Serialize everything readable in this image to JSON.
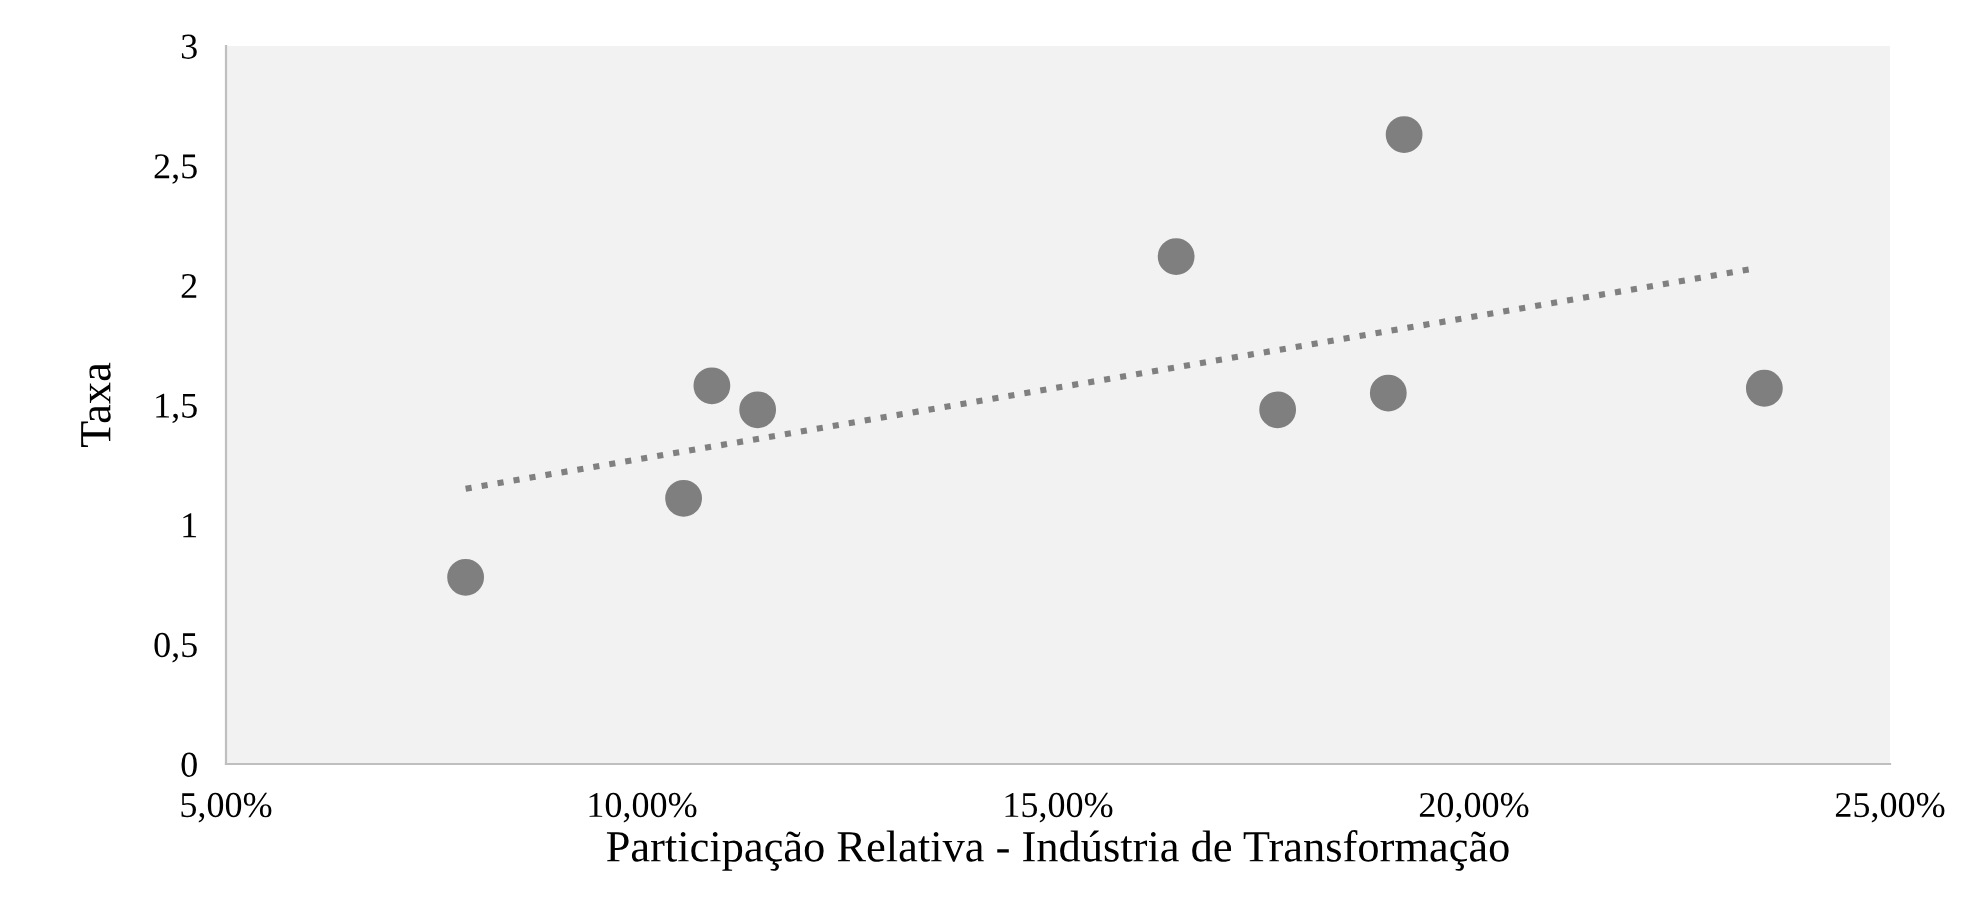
{
  "chart_data": {
    "type": "scatter",
    "xlabel": "Participação Relativa - Indústria de Transformação",
    "ylabel": "Taxa",
    "series": [
      {
        "color": "#7f7f7f",
        "marker": "circle",
        "x": [
          7.88,
          10.5,
          10.84,
          11.39,
          16.42,
          17.64,
          18.97,
          19.16,
          23.49
        ],
        "values": [
          0.78,
          1.11,
          1.58,
          1.48,
          2.12,
          1.48,
          1.55,
          2.63,
          1.57
        ]
      },
      {
        "type": "line",
        "color": "#808080",
        "line_style": "dotted",
        "x": [
          7.88,
          23.37
        ],
        "values": [
          1.15,
          2.07
        ]
      }
    ],
    "xlim": [
      5,
      25
    ],
    "ylim": [
      0,
      3
    ],
    "xticks": [
      {
        "value": 5,
        "label": "5,00%"
      },
      {
        "value": 10,
        "label": "10,00%"
      },
      {
        "value": 15,
        "label": "15,00%"
      },
      {
        "value": 20,
        "label": "20,00%"
      },
      {
        "value": 25,
        "label": "25,00%"
      }
    ],
    "yticks": [
      0,
      {
        "value": 0.5,
        "label": "0,5"
      },
      1,
      {
        "value": 1.5,
        "label": "1,5"
      },
      2,
      {
        "value": 2.5,
        "label": "2,5"
      },
      3
    ],
    "grid": false
  }
}
